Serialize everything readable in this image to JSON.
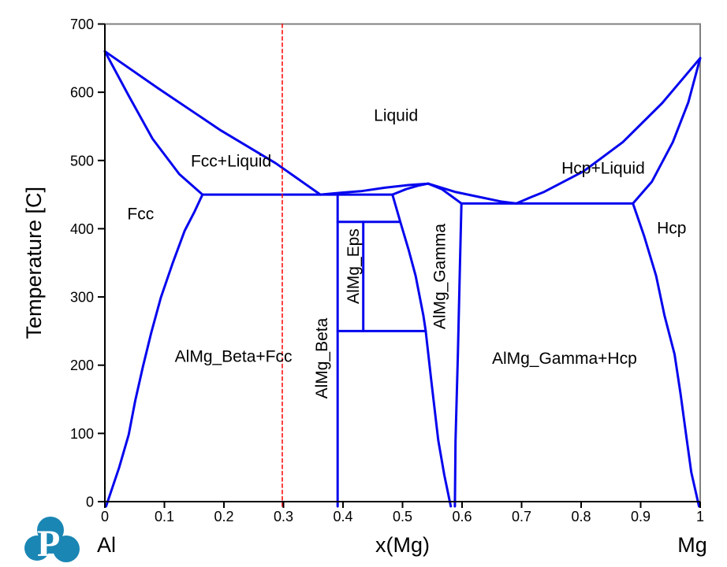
{
  "chart_data": {
    "type": "line",
    "title": "",
    "xlabel": "x(Mg)",
    "ylabel": "Temperature [C]",
    "x_endpoint_labels": {
      "left": "Al",
      "right": "Mg"
    },
    "xlim": [
      0,
      1
    ],
    "ylim": [
      0,
      700
    ],
    "grid": false,
    "legend": null,
    "x_ticks": {
      "values": [
        0,
        0.1,
        0.2,
        0.3,
        0.4,
        0.5,
        0.6,
        0.7,
        0.8,
        0.9,
        1
      ],
      "labels": [
        "0",
        "0.1",
        "0.2",
        "0.3",
        "0.4",
        "0.5",
        "0.6",
        "0.7",
        "0.8",
        "0.9",
        "1"
      ]
    },
    "y_ticks": {
      "values": [
        0,
        100,
        200,
        300,
        400,
        500,
        600,
        700
      ],
      "labels": [
        "0",
        "100",
        "200",
        "300",
        "400",
        "500",
        "600",
        "700"
      ]
    },
    "colors": {
      "phase_boundary": "#0505ee",
      "marked_composition": "#ff0000",
      "axis": "#000000",
      "frame": "#808080",
      "background": "#ffffff",
      "text": "#000000"
    },
    "series": [
      {
        "name": "fcc-liquidus",
        "color": "blue",
        "style": "solid",
        "points": [
          [
            0,
            660
          ],
          [
            0.089,
            606
          ],
          [
            0.195,
            544
          ],
          [
            0.287,
            496
          ],
          [
            0.362,
            450
          ]
        ]
      },
      {
        "name": "fcc-solidus",
        "color": "blue",
        "style": "solid",
        "points": [
          [
            0,
            660
          ],
          [
            0.04,
            595
          ],
          [
            0.08,
            532
          ],
          [
            0.125,
            480
          ],
          [
            0.164,
            450
          ]
        ]
      },
      {
        "name": "eutectic-isotherm-450C",
        "color": "blue",
        "style": "solid",
        "points": [
          [
            0.164,
            450
          ],
          [
            0.483,
            450
          ]
        ]
      },
      {
        "name": "fcc-solvus",
        "color": "blue",
        "style": "solid",
        "points": [
          [
            0.164,
            450
          ],
          [
            0.15,
            424
          ],
          [
            0.134,
            397
          ],
          [
            0.114,
            350
          ],
          [
            0.094,
            299
          ],
          [
            0.078,
            248
          ],
          [
            0.064,
            198
          ],
          [
            0.051,
            148
          ],
          [
            0.04,
            98
          ],
          [
            0.024,
            50
          ],
          [
            0.002,
            0
          ]
        ]
      },
      {
        "name": "liquidus-left-of-gamma",
        "color": "blue",
        "style": "solid",
        "points": [
          [
            0.362,
            450
          ],
          [
            0.4,
            453
          ],
          [
            0.43,
            455
          ],
          [
            0.47,
            460
          ],
          [
            0.51,
            464
          ],
          [
            0.543,
            466
          ]
        ]
      },
      {
        "name": "gamma-solidus-left",
        "color": "blue",
        "style": "solid",
        "points": [
          [
            0.483,
            450
          ],
          [
            0.506,
            458
          ],
          [
            0.526,
            463
          ],
          [
            0.543,
            466
          ]
        ]
      },
      {
        "name": "liquidus-right-of-gamma",
        "color": "blue",
        "style": "solid",
        "points": [
          [
            0.543,
            466
          ],
          [
            0.588,
            454
          ],
          [
            0.632,
            446
          ],
          [
            0.665,
            440
          ],
          [
            0.691,
            437
          ]
        ]
      },
      {
        "name": "gamma-solidus-right",
        "color": "blue",
        "style": "solid",
        "points": [
          [
            0.543,
            466
          ],
          [
            0.566,
            458
          ],
          [
            0.585,
            446
          ],
          [
            0.599,
            437
          ]
        ]
      },
      {
        "name": "eutectic-isotherm-437C",
        "color": "blue",
        "style": "solid",
        "points": [
          [
            0.599,
            437
          ],
          [
            0.887,
            437
          ]
        ]
      },
      {
        "name": "hcp-liquidus",
        "color": "blue",
        "style": "solid",
        "points": [
          [
            0.691,
            437
          ],
          [
            0.715,
            446
          ],
          [
            0.738,
            454
          ],
          [
            0.804,
            484
          ],
          [
            0.87,
            527
          ],
          [
            0.936,
            584
          ],
          [
            1,
            650
          ]
        ]
      },
      {
        "name": "hcp-solidus",
        "color": "blue",
        "style": "solid",
        "points": [
          [
            1,
            650
          ],
          [
            0.98,
            585
          ],
          [
            0.954,
            527
          ],
          [
            0.919,
            469
          ],
          [
            0.887,
            437
          ]
        ]
      },
      {
        "name": "hcp-solvus",
        "color": "blue",
        "style": "solid",
        "points": [
          [
            0.887,
            437
          ],
          [
            0.906,
            389
          ],
          [
            0.926,
            331
          ],
          [
            0.94,
            273
          ],
          [
            0.957,
            216
          ],
          [
            0.967,
            158
          ],
          [
            0.976,
            100
          ],
          [
            0.985,
            43
          ],
          [
            0.998,
            0
          ]
        ]
      },
      {
        "name": "almg-beta-stoichiometric-line",
        "color": "blue",
        "style": "solid",
        "points": [
          [
            0.391,
            450
          ],
          [
            0.391,
            0
          ]
        ]
      },
      {
        "name": "almg-eps-stoichiometric-line",
        "color": "blue",
        "style": "solid",
        "points": [
          [
            0.434,
            410
          ],
          [
            0.434,
            250
          ]
        ]
      },
      {
        "name": "isotherm-410C",
        "color": "blue",
        "style": "solid",
        "points": [
          [
            0.391,
            410
          ],
          [
            0.495,
            410
          ]
        ]
      },
      {
        "name": "isotherm-250C",
        "color": "blue",
        "style": "solid",
        "points": [
          [
            0.391,
            250
          ],
          [
            0.539,
            250
          ]
        ]
      },
      {
        "name": "gamma-left-solvus",
        "color": "blue",
        "style": "solid",
        "points": [
          [
            0.483,
            450
          ],
          [
            0.497,
            408
          ],
          [
            0.51,
            370
          ],
          [
            0.522,
            331
          ],
          [
            0.535,
            273
          ],
          [
            0.539,
            250
          ],
          [
            0.548,
            180
          ],
          [
            0.56,
            90
          ],
          [
            0.57,
            40
          ],
          [
            0.581,
            0
          ]
        ]
      },
      {
        "name": "gamma-right-solvus",
        "color": "blue",
        "style": "solid",
        "points": [
          [
            0.599,
            437
          ],
          [
            0.596,
            331
          ],
          [
            0.593,
            216
          ],
          [
            0.589,
            89
          ],
          [
            0.588,
            0
          ]
        ]
      },
      {
        "name": "marked-composition-x-0.3",
        "color": "red",
        "style": "dashed",
        "points": [
          [
            0.298,
            700
          ],
          [
            0.298,
            0
          ]
        ]
      }
    ],
    "region_labels": [
      {
        "text": "Liquid",
        "x": 0.489,
        "T": 566,
        "rotate": 0
      },
      {
        "text": "Fcc+Liquid",
        "x": 0.212,
        "T": 499,
        "rotate": 0
      },
      {
        "text": "Hcp+Liquid",
        "x": 0.837,
        "T": 489,
        "rotate": 0
      },
      {
        "text": "Fcc",
        "x": 0.06,
        "T": 422,
        "rotate": 0
      },
      {
        "text": "Hcp",
        "x": 0.952,
        "T": 401,
        "rotate": 0
      },
      {
        "text": "AlMg_Beta+Fcc",
        "x": 0.216,
        "T": 213,
        "rotate": 0
      },
      {
        "text": "AlMg_Gamma+Hcp",
        "x": 0.772,
        "T": 210,
        "rotate": 0
      },
      {
        "text": "AlMg_Beta",
        "x": 0.364,
        "T": 210,
        "rotate": -90
      },
      {
        "text": "AlMg_Eps",
        "x": 0.417,
        "T": 345,
        "rotate": -90
      },
      {
        "text": "AlMg_Gamma",
        "x": 0.562,
        "T": 330,
        "rotate": -90
      }
    ],
    "key_points": {
      "al_melting_C": 660,
      "mg_melting_C": 650,
      "eutectic_fcc_beta": {
        "x": 0.362,
        "T_C": 450
      },
      "eutectic_gamma_hcp": {
        "x": 0.691,
        "T_C": 437
      },
      "gamma_congruent_melting": {
        "x": 0.543,
        "T_C": 466
      },
      "beta_composition_x": 0.391,
      "eps_composition_x": 0.434,
      "eps_stable_range_C": [
        250,
        410
      ],
      "marked_composition_x": 0.3
    }
  },
  "logo": {
    "letter": "P",
    "color": "#1a86b4"
  }
}
